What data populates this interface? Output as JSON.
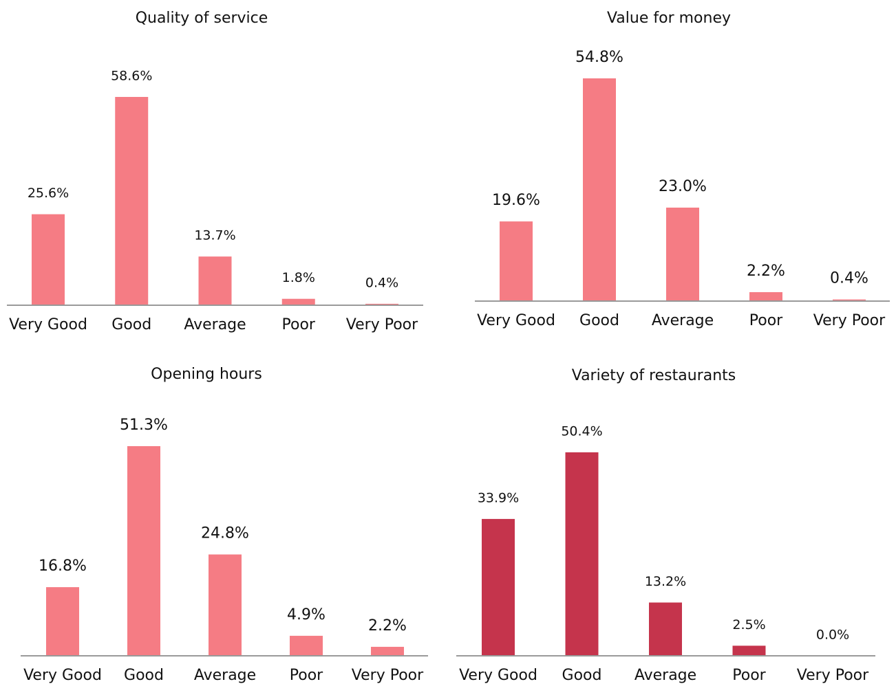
{
  "chart_data": [
    {
      "type": "bar",
      "title": "Quality of service",
      "categories": [
        "Very Good",
        "Good",
        "Average",
        "Poor",
        "Very Poor"
      ],
      "values": [
        25.6,
        58.6,
        13.7,
        1.8,
        0.4
      ],
      "value_labels": [
        "25.6%",
        "58.6%",
        "13.7%",
        "1.8%",
        "0.4%"
      ],
      "color": "#f57c84"
    },
    {
      "type": "bar",
      "title": "Value for money",
      "categories": [
        "Very Good",
        "Good",
        "Average",
        "Poor",
        "Very Poor"
      ],
      "values": [
        19.6,
        54.8,
        23.0,
        2.2,
        0.4
      ],
      "value_labels": [
        "19.6%",
        "54.8%",
        "23.0%",
        "2.2%",
        "0.4%"
      ],
      "color": "#f57c84"
    },
    {
      "type": "bar",
      "title": "Opening hours",
      "categories": [
        "Very Good",
        "Good",
        "Average",
        "Poor",
        "Very Poor"
      ],
      "values": [
        16.8,
        51.3,
        24.8,
        4.9,
        2.2
      ],
      "value_labels": [
        "16.8%",
        "51.3%",
        "24.8%",
        "4.9%",
        "2.2%"
      ],
      "color": "#f57c84"
    },
    {
      "type": "bar",
      "title": "Variety of restaurants",
      "categories": [
        "Very Good",
        "Good",
        "Average",
        "Poor",
        "Very Poor"
      ],
      "values": [
        33.9,
        50.4,
        13.2,
        2.5,
        0.0
      ],
      "value_labels": [
        "33.9%",
        "50.4%",
        "13.2%",
        "2.5%",
        "0.0%"
      ],
      "color": "#c5344c"
    }
  ]
}
